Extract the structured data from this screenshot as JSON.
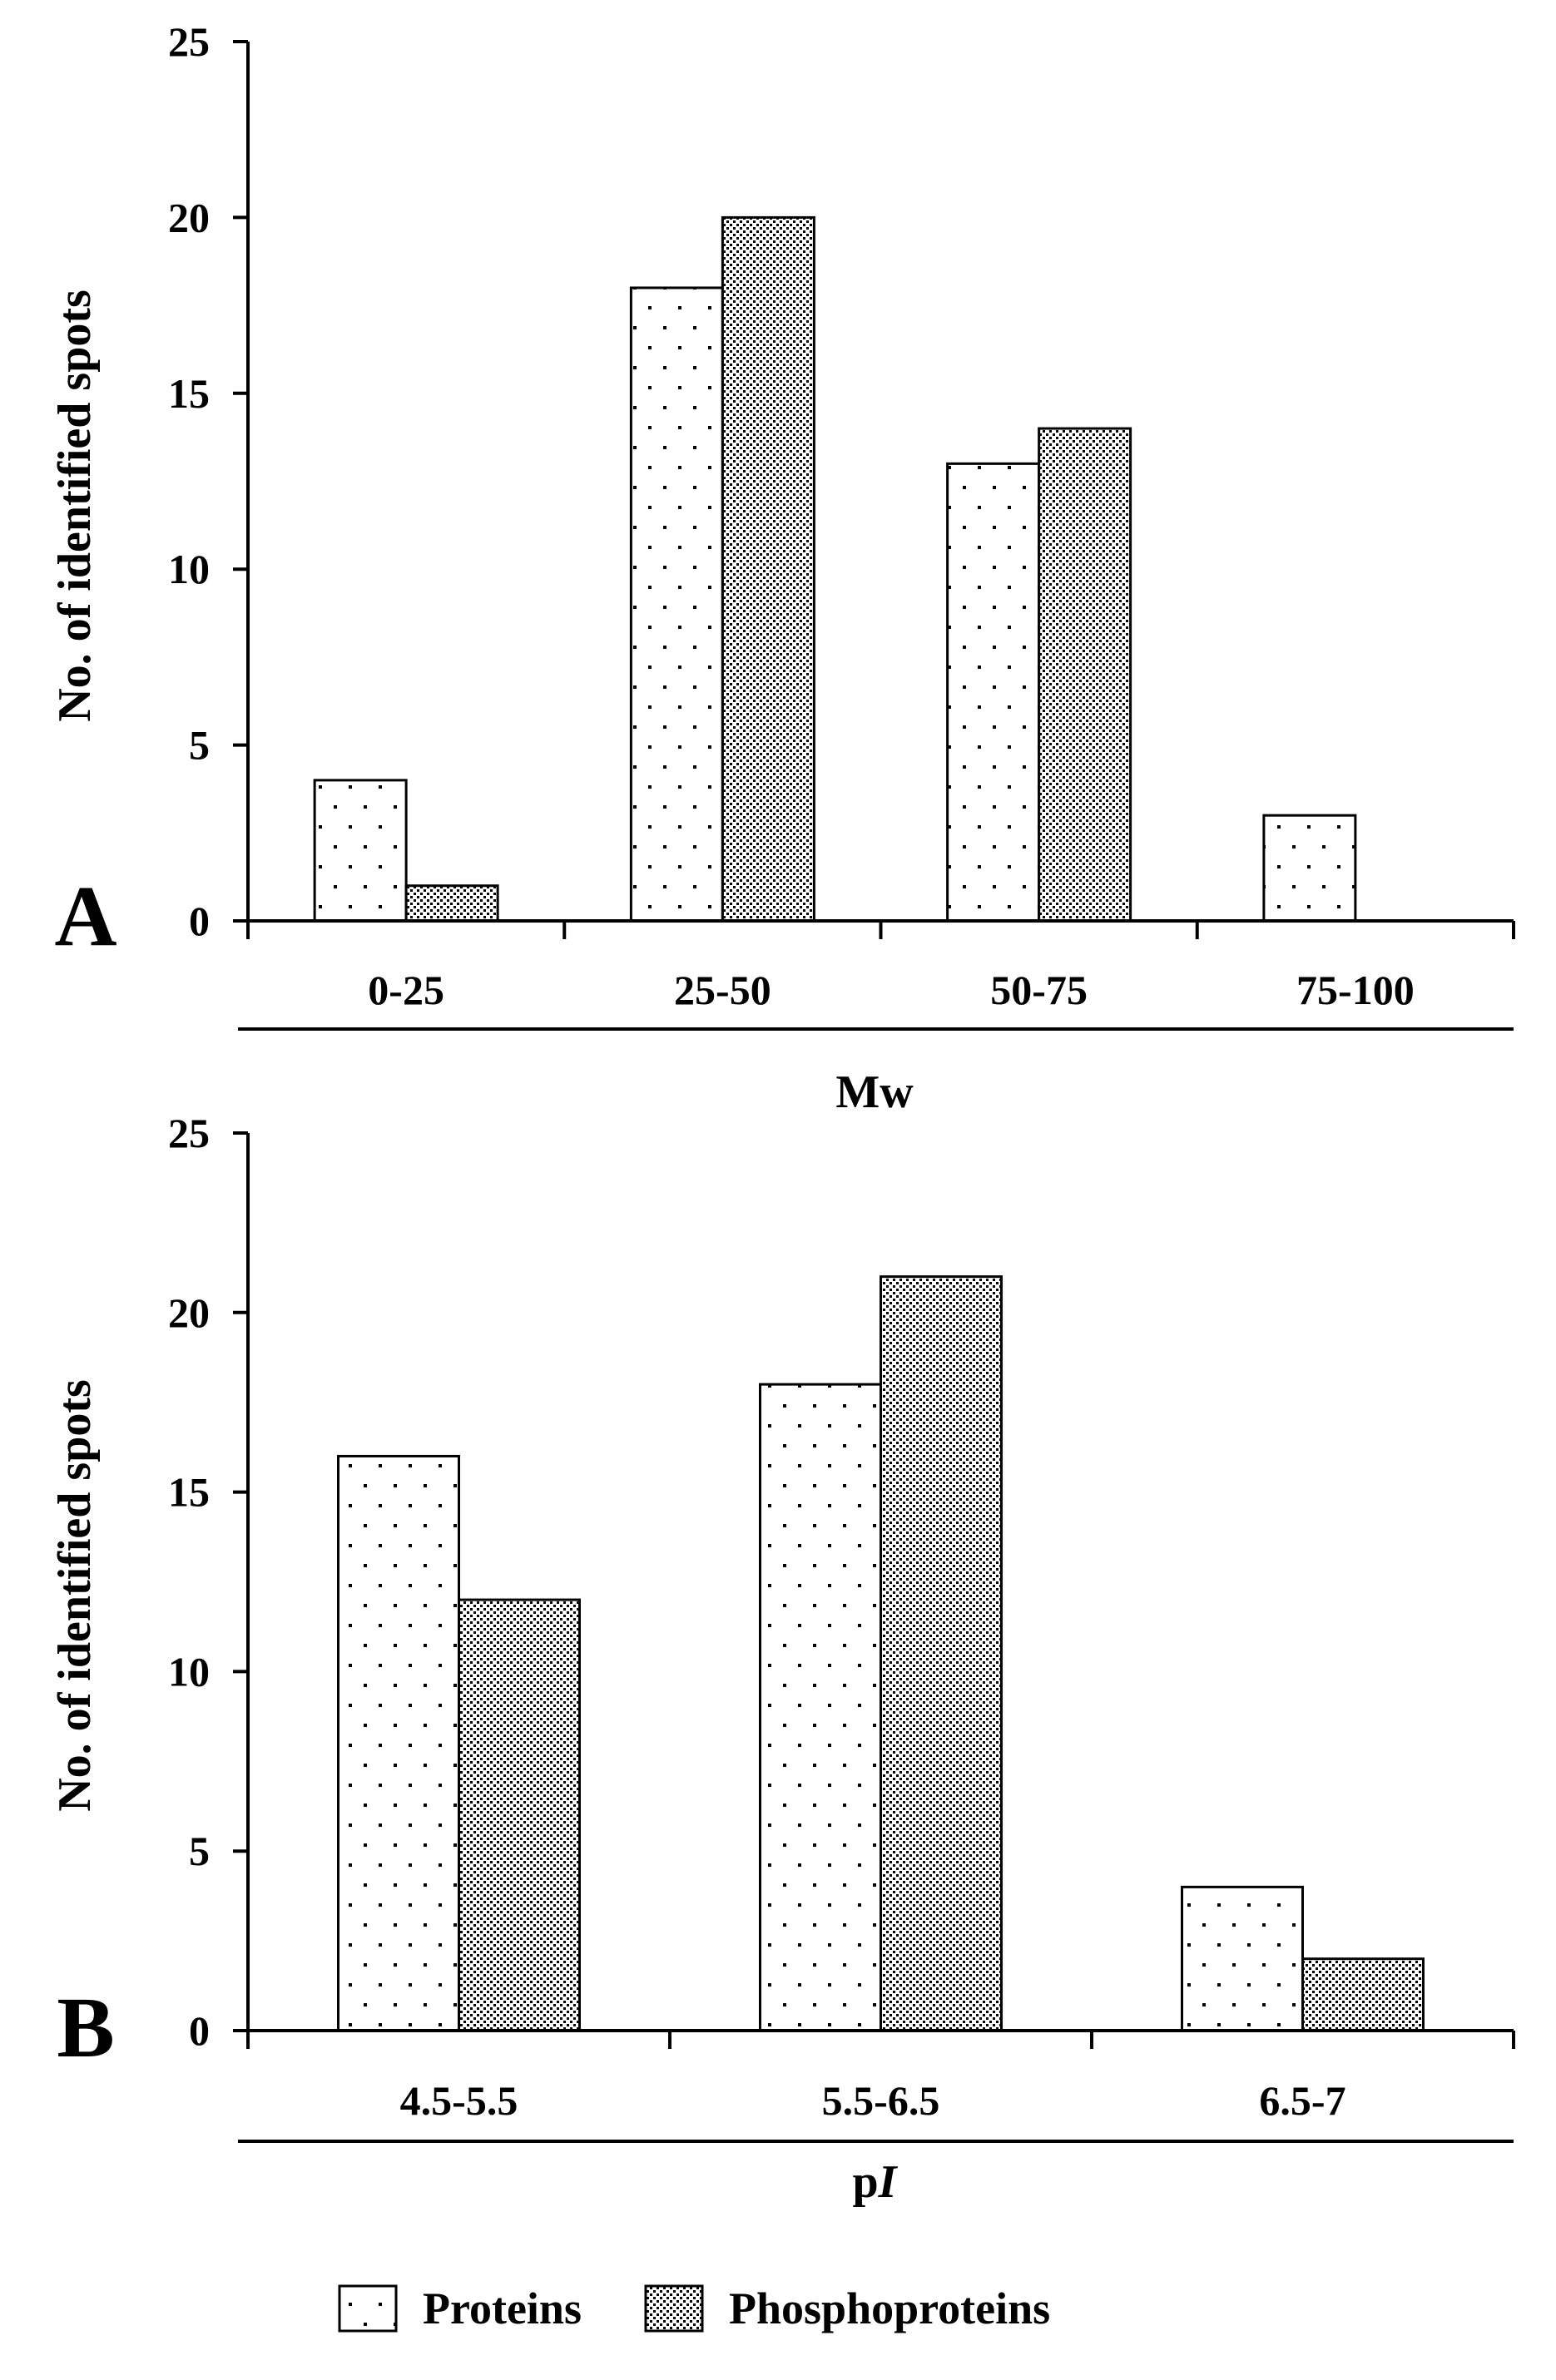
{
  "colors": {
    "ink": "#000000",
    "background": "#ffffff"
  },
  "chart_data": [
    {
      "type": "bar",
      "panel_label": "A",
      "categories": [
        "0-25",
        "25-50",
        "50-75",
        "75-100"
      ],
      "series": [
        {
          "name": "Proteins",
          "values": [
            4,
            18,
            13,
            3
          ],
          "pattern": "sparse-dots"
        },
        {
          "name": "Phosphoproteins",
          "values": [
            1,
            20,
            14,
            0
          ],
          "pattern": "dense-dots"
        }
      ],
      "xlabel": "Mw",
      "ylabel": "No. of identified spots",
      "ylim": [
        0,
        25
      ],
      "yticks": [
        "0",
        "5",
        "10",
        "15",
        "20",
        "25"
      ],
      "grid": false
    },
    {
      "type": "bar",
      "panel_label": "B",
      "categories": [
        "4.5-5.5",
        "5.5-6.5",
        "6.5-7"
      ],
      "series": [
        {
          "name": "Proteins",
          "values": [
            16,
            18,
            4
          ],
          "pattern": "sparse-dots"
        },
        {
          "name": "Phosphoproteins",
          "values": [
            12,
            21,
            2
          ],
          "pattern": "dense-dots"
        }
      ],
      "xlabel": "pI",
      "xlabel_parts": [
        "p",
        "I"
      ],
      "ylabel": "No. of identified spots",
      "ylim": [
        0,
        25
      ],
      "yticks": [
        "0",
        "5",
        "10",
        "15",
        "20",
        "25"
      ],
      "grid": false
    }
  ],
  "legend": {
    "placement": "bottom",
    "items": [
      {
        "label": "Proteins",
        "pattern": "sparse-dots"
      },
      {
        "label": "Phosphoproteins",
        "pattern": "dense-dots"
      }
    ]
  }
}
